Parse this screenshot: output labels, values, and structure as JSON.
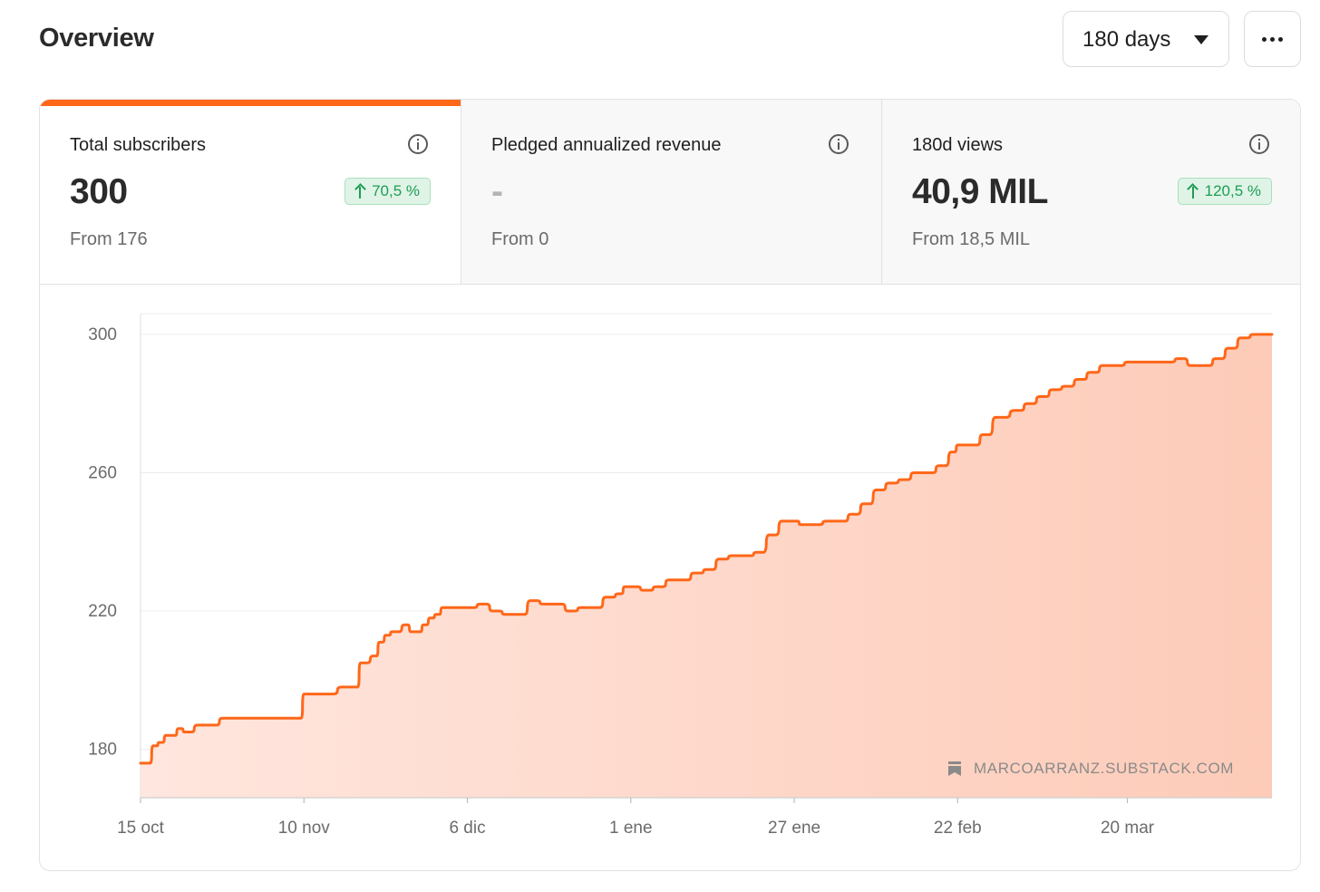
{
  "header": {
    "title": "Overview",
    "range_select": {
      "value": "180 days"
    },
    "more_button": {
      "icon": "more-horizontal-icon"
    }
  },
  "stats": [
    {
      "label": "Total subscribers",
      "value": "300",
      "delta": "70,5 %",
      "from": "From 176",
      "active": true
    },
    {
      "label": "Pledged annualized revenue",
      "value": "-",
      "delta": "",
      "from": "From 0",
      "active": false
    },
    {
      "label": "180d views",
      "value": "40,9 MIL",
      "delta": "120,5 %",
      "from": "From 18,5 MIL",
      "active": false
    }
  ],
  "colors": {
    "accent": "#ff6719",
    "fill": "#ffd9cb",
    "positive": "#1f9d55"
  },
  "watermark": "MARCOARRANZ.SUBSTACK.COM",
  "chart_data": {
    "type": "area",
    "title": "",
    "xlabel": "",
    "ylabel": "",
    "ylim": [
      166,
      306
    ],
    "yticks": [
      180,
      220,
      260,
      300
    ],
    "xlim": [
      "15 oct",
      "12 abr"
    ],
    "xtick_labels": [
      "15 oct",
      "10 nov",
      "6 dic",
      "1 ene",
      "27 ene",
      "22 feb",
      "20 mar"
    ],
    "grid": true,
    "series": [
      {
        "x": [
          "15 oct",
          "16 oct",
          "17 oct",
          "18 oct",
          "19 oct",
          "20 oct",
          "21 oct",
          "22 oct",
          "24 oct",
          "26 oct",
          "28 oct",
          "30 oct",
          "1 nov",
          "4 nov",
          "6 nov",
          "8 nov",
          "9 nov",
          "10 nov",
          "11 nov",
          "13 nov",
          "16 nov",
          "18 nov",
          "19 nov",
          "21 nov",
          "22 nov",
          "23 nov",
          "24 nov",
          "26 nov",
          "27 nov",
          "28 nov",
          "29 nov",
          "30 nov",
          "1 dic",
          "2 dic",
          "3 dic",
          "4 dic",
          "5 dic",
          "6 dic",
          "8 dic",
          "10 dic",
          "12 dic",
          "14 dic",
          "16 dic",
          "18 dic",
          "20 dic",
          "22 dic",
          "24 dic",
          "26 dic",
          "28 dic",
          "30 dic",
          "31 dic",
          "1 ene",
          "3 ene",
          "5 ene",
          "7 ene",
          "9 ene",
          "11 ene",
          "13 ene",
          "15 ene",
          "17 ene",
          "19 ene",
          "21 ene",
          "23 ene",
          "25 ene",
          "27 ene",
          "28 ene",
          "30 ene",
          "1 feb",
          "3 feb",
          "5 feb",
          "7 feb",
          "9 feb",
          "11 feb",
          "13 feb",
          "15 feb",
          "17 feb",
          "19 feb",
          "21 feb",
          "22 feb",
          "24 feb",
          "26 feb",
          "28 feb",
          "2 mar",
          "4 mar",
          "6 mar",
          "8 mar",
          "10 mar",
          "12 mar",
          "14 mar",
          "16 mar",
          "18 mar",
          "20 mar",
          "22 mar",
          "24 mar",
          "26 mar",
          "28 mar",
          "30 mar",
          "1 abr",
          "3 abr",
          "5 abr",
          "7 abr",
          "9 abr",
          "10 abr",
          "11 abr",
          "12 abr"
        ],
        "values": [
          176,
          176,
          181,
          182,
          184,
          184,
          186,
          185,
          187,
          187,
          189,
          189,
          189,
          189,
          189,
          189,
          189,
          196,
          196,
          196,
          198,
          198,
          205,
          207,
          211,
          213,
          214,
          216,
          214,
          214,
          216,
          218,
          219,
          221,
          221,
          221,
          221,
          221,
          222,
          220,
          219,
          219,
          223,
          222,
          222,
          220,
          221,
          221,
          224,
          225,
          227,
          227,
          226,
          227,
          229,
          229,
          231,
          232,
          235,
          236,
          236,
          237,
          242,
          246,
          246,
          245,
          245,
          246,
          246,
          248,
          251,
          255,
          257,
          258,
          260,
          260,
          262,
          266,
          268,
          268,
          271,
          276,
          278,
          280,
          282,
          284,
          285,
          287,
          289,
          291,
          291,
          292,
          292,
          292,
          292,
          293,
          291,
          291,
          293,
          296,
          299,
          300,
          300,
          300,
          300
        ]
      }
    ]
  }
}
